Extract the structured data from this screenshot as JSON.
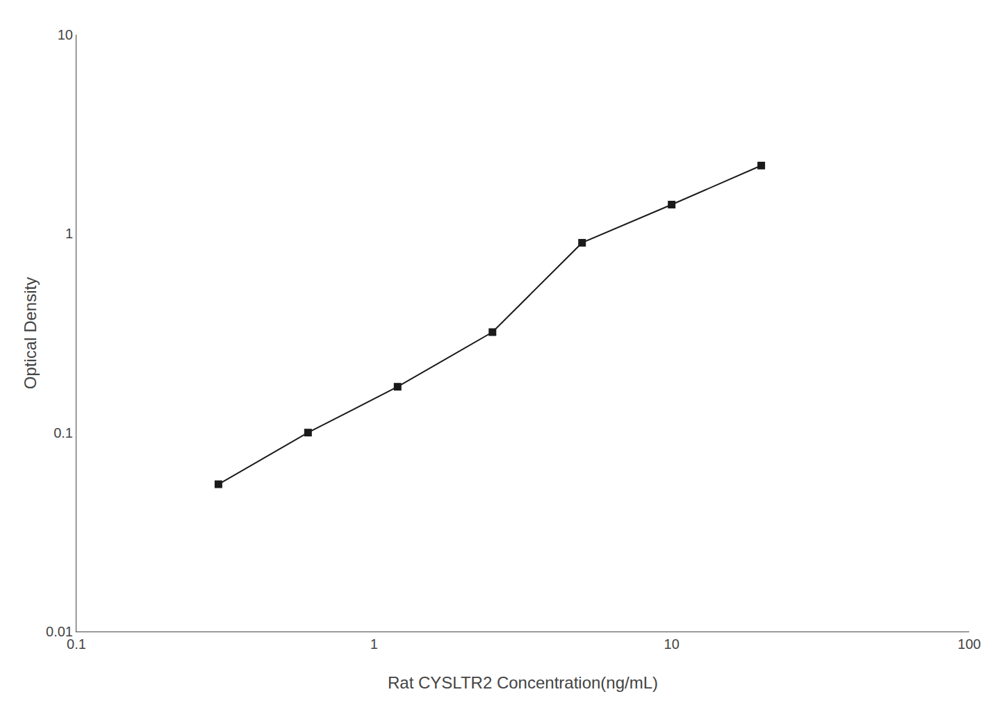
{
  "chart_data": {
    "type": "line",
    "x": [
      0.3,
      0.6,
      1.2,
      2.5,
      5.0,
      10.0,
      20.0
    ],
    "values": [
      0.055,
      0.1,
      0.17,
      0.32,
      0.9,
      1.4,
      2.2
    ],
    "xlabel": "Rat CYSLTR2 Concentration(ng/mL)",
    "ylabel": "Optical Density",
    "xlim": [
      0.1,
      100
    ],
    "ylim": [
      0.01,
      10
    ],
    "xticks": [
      0.1,
      1,
      10,
      100
    ],
    "yticks": [
      0.01,
      0.1,
      1,
      10
    ],
    "log": true,
    "grid": false,
    "color": "#1a1a1a",
    "marker": "square",
    "line_style": "solid"
  }
}
